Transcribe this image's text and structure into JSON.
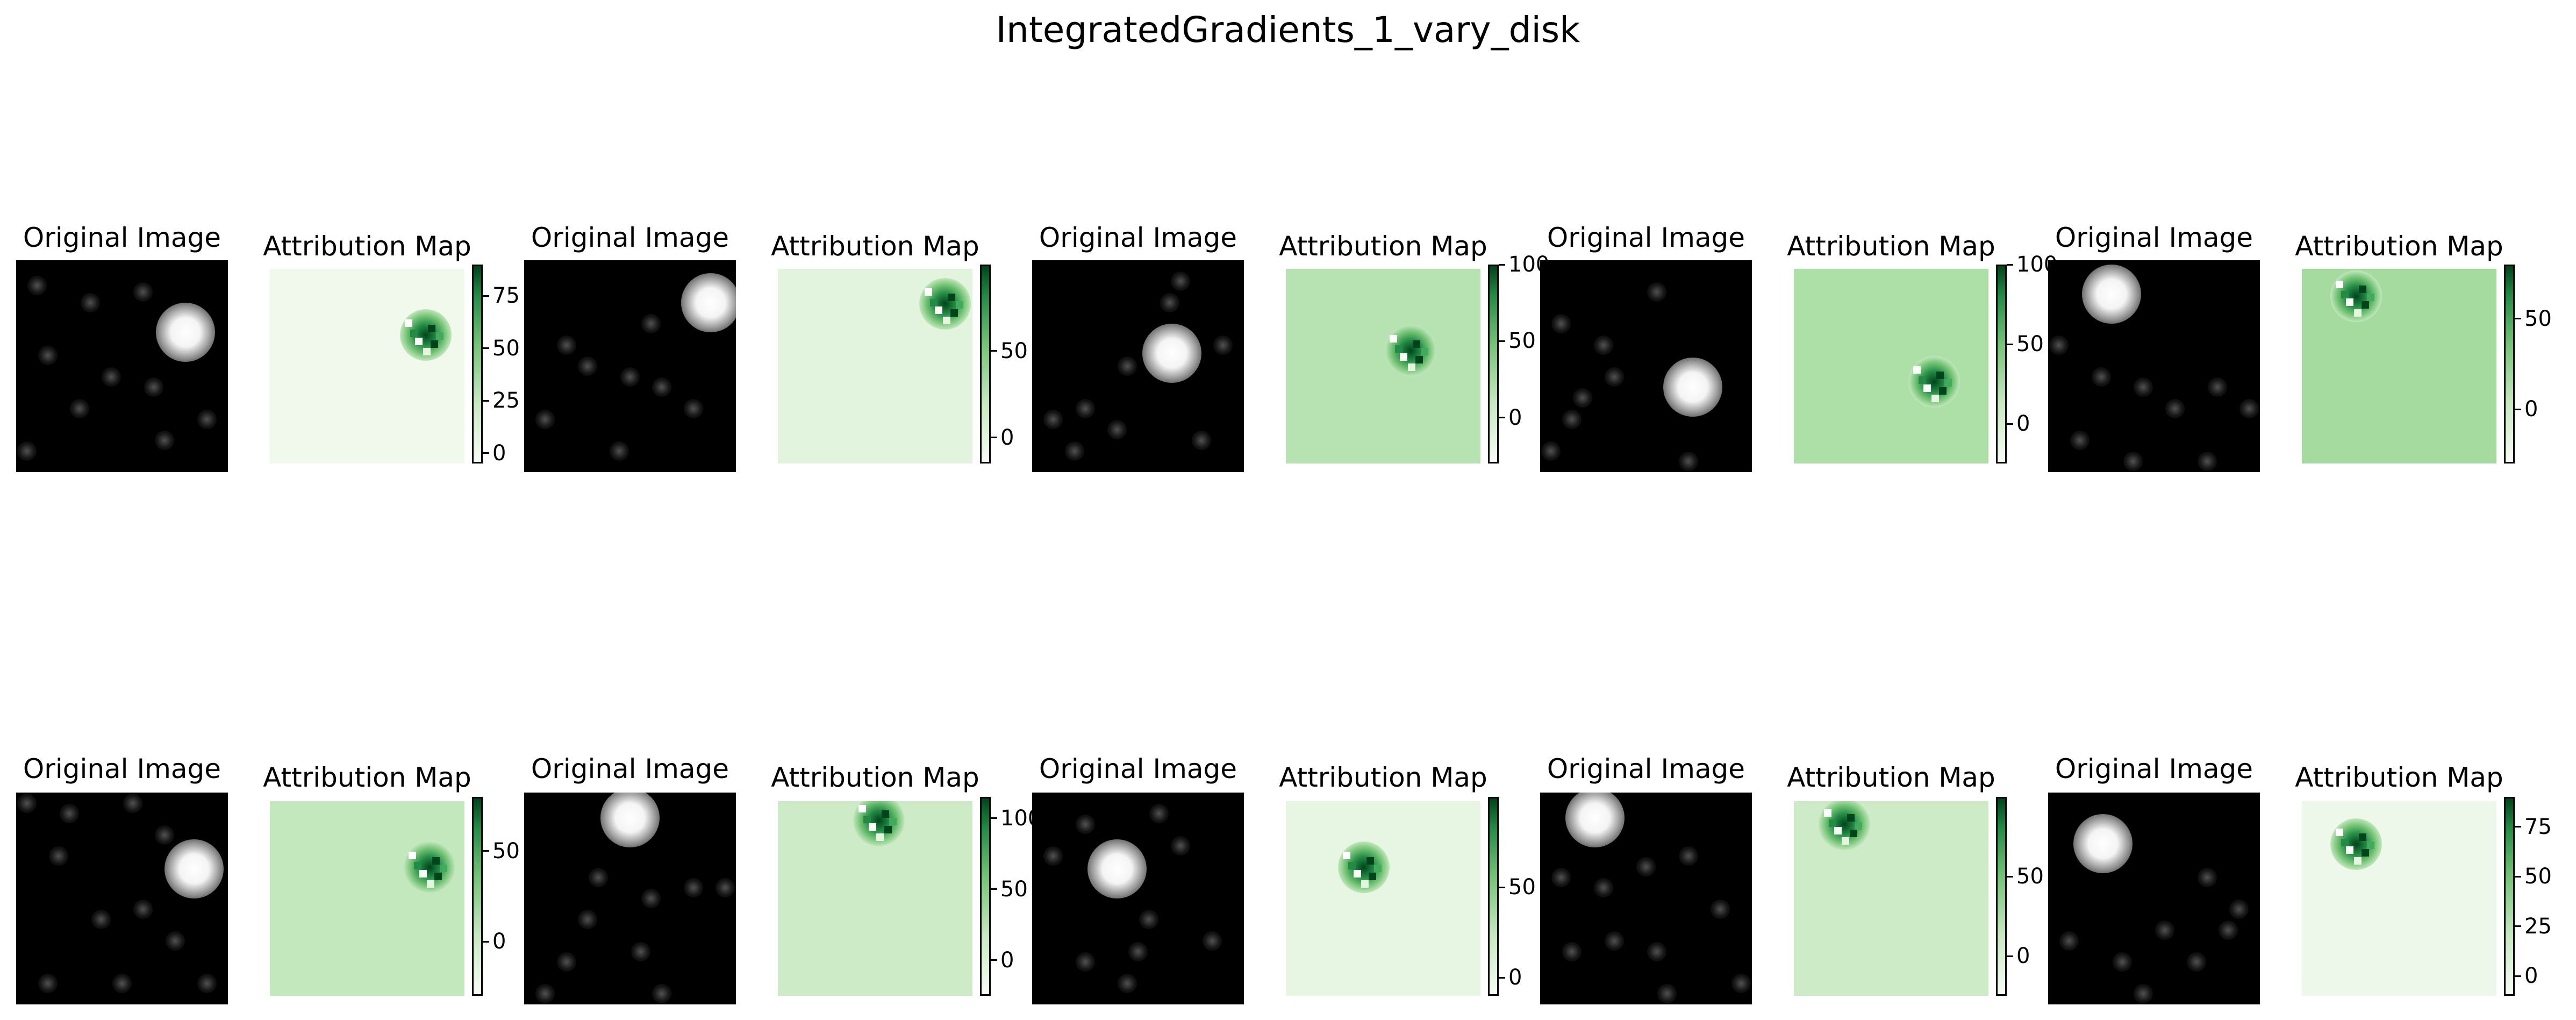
{
  "chart_data": {
    "type": "heatmap",
    "title": "IntegratedGradients_1_vary_disk",
    "colormap": "Greens",
    "panels": [
      {
        "row": 0,
        "image_title": "Original Image",
        "attr_title": "Attribution Map",
        "disk": [
          0.8,
          0.34
        ],
        "noise": [
          [
            0.1,
            0.12
          ],
          [
            0.35,
            0.2
          ],
          [
            0.6,
            0.15
          ],
          [
            0.15,
            0.45
          ],
          [
            0.45,
            0.55
          ],
          [
            0.65,
            0.6
          ],
          [
            0.3,
            0.7
          ],
          [
            0.05,
            0.9
          ],
          [
            0.7,
            0.85
          ],
          [
            0.9,
            0.75
          ]
        ],
        "attr_center": [
          0.8,
          0.34
        ],
        "attr_bg": "#f0f9ec",
        "colorbar": {
          "min": -5,
          "max": 90,
          "ticks": [
            0,
            25,
            50,
            75
          ]
        }
      },
      {
        "row": 0,
        "image_title": "Original Image",
        "attr_title": "Attribution Map",
        "disk": [
          0.88,
          0.2
        ],
        "noise": [
          [
            0.2,
            0.4
          ],
          [
            0.3,
            0.5
          ],
          [
            0.5,
            0.55
          ],
          [
            0.65,
            0.6
          ],
          [
            0.1,
            0.75
          ],
          [
            0.45,
            0.9
          ],
          [
            0.8,
            0.7
          ],
          [
            0.6,
            0.3
          ]
        ],
        "attr_center": [
          0.86,
          0.18
        ],
        "attr_bg": "#e2f4dd",
        "colorbar": {
          "min": -15,
          "max": 100,
          "ticks": [
            0,
            50
          ]
        }
      },
      {
        "row": 0,
        "image_title": "Original Image",
        "attr_title": "Attribution Map",
        "disk": [
          0.66,
          0.44
        ],
        "noise": [
          [
            0.7,
            0.1
          ],
          [
            0.65,
            0.2
          ],
          [
            0.45,
            0.5
          ],
          [
            0.25,
            0.7
          ],
          [
            0.1,
            0.75
          ],
          [
            0.4,
            0.8
          ],
          [
            0.8,
            0.85
          ],
          [
            0.2,
            0.9
          ],
          [
            0.9,
            0.4
          ]
        ],
        "attr_center": [
          0.64,
          0.42
        ],
        "attr_bg": "#b7e2b1",
        "colorbar": {
          "min": -30,
          "max": 100,
          "ticks": [
            0,
            50,
            100
          ]
        }
      },
      {
        "row": 0,
        "image_title": "Original Image",
        "attr_title": "Attribution Map",
        "disk": [
          0.72,
          0.6
        ],
        "noise": [
          [
            0.1,
            0.3
          ],
          [
            0.3,
            0.4
          ],
          [
            0.2,
            0.65
          ],
          [
            0.35,
            0.55
          ],
          [
            0.15,
            0.75
          ],
          [
            0.55,
            0.15
          ],
          [
            0.7,
            0.95
          ],
          [
            0.05,
            0.9
          ]
        ],
        "attr_center": [
          0.72,
          0.58
        ],
        "attr_bg": "#ade0a6",
        "colorbar": {
          "min": -25,
          "max": 100,
          "ticks": [
            0,
            50,
            100
          ]
        }
      },
      {
        "row": 0,
        "image_title": "Original Image",
        "attr_title": "Attribution Map",
        "disk": [
          0.3,
          0.16
        ],
        "noise": [
          [
            0.05,
            0.4
          ],
          [
            0.25,
            0.55
          ],
          [
            0.45,
            0.6
          ],
          [
            0.6,
            0.7
          ],
          [
            0.8,
            0.6
          ],
          [
            0.95,
            0.7
          ],
          [
            0.15,
            0.85
          ],
          [
            0.4,
            0.95
          ],
          [
            0.75,
            0.95
          ]
        ],
        "attr_center": [
          0.28,
          0.14
        ],
        "attr_bg": "#a6dba0",
        "colorbar": {
          "min": -30,
          "max": 80,
          "ticks": [
            0,
            50
          ]
        }
      },
      {
        "row": 1,
        "image_title": "Original Image",
        "attr_title": "Attribution Map",
        "disk": [
          0.84,
          0.36
        ],
        "noise": [
          [
            0.05,
            0.05
          ],
          [
            0.25,
            0.1
          ],
          [
            0.55,
            0.05
          ],
          [
            0.7,
            0.2
          ],
          [
            0.2,
            0.3
          ],
          [
            0.4,
            0.6
          ],
          [
            0.6,
            0.55
          ],
          [
            0.75,
            0.7
          ],
          [
            0.15,
            0.9
          ],
          [
            0.9,
            0.9
          ],
          [
            0.5,
            0.9
          ]
        ],
        "attr_center": [
          0.82,
          0.34
        ],
        "attr_bg": "#c4e8bd",
        "colorbar": {
          "min": -30,
          "max": 80,
          "ticks": [
            0,
            50
          ]
        }
      },
      {
        "row": 1,
        "image_title": "Original Image",
        "attr_title": "Attribution Map",
        "disk": [
          0.5,
          0.12
        ],
        "noise": [
          [
            0.35,
            0.4
          ],
          [
            0.6,
            0.5
          ],
          [
            0.3,
            0.6
          ],
          [
            0.8,
            0.45
          ],
          [
            0.95,
            0.45
          ],
          [
            0.55,
            0.75
          ],
          [
            0.2,
            0.8
          ],
          [
            0.1,
            0.95
          ],
          [
            0.65,
            0.95
          ]
        ],
        "attr_center": [
          0.52,
          0.1
        ],
        "attr_bg": "#cdebc6",
        "colorbar": {
          "min": -25,
          "max": 115,
          "ticks": [
            0,
            50,
            100
          ]
        }
      },
      {
        "row": 1,
        "image_title": "Original Image",
        "attr_title": "Attribution Map",
        "disk": [
          0.4,
          0.36
        ],
        "noise": [
          [
            0.1,
            0.3
          ],
          [
            0.25,
            0.15
          ],
          [
            0.6,
            0.1
          ],
          [
            0.7,
            0.25
          ],
          [
            0.55,
            0.6
          ],
          [
            0.5,
            0.75
          ],
          [
            0.45,
            0.9
          ],
          [
            0.25,
            0.8
          ],
          [
            0.85,
            0.7
          ]
        ],
        "attr_center": [
          0.4,
          0.34
        ],
        "attr_bg": "#e7f6e2",
        "colorbar": {
          "min": -10,
          "max": 100,
          "ticks": [
            0,
            50
          ]
        }
      },
      {
        "row": 1,
        "image_title": "Original Image",
        "attr_title": "Attribution Map",
        "disk": [
          0.26,
          0.12
        ],
        "noise": [
          [
            0.1,
            0.4
          ],
          [
            0.3,
            0.45
          ],
          [
            0.5,
            0.35
          ],
          [
            0.7,
            0.3
          ],
          [
            0.85,
            0.55
          ],
          [
            0.55,
            0.75
          ],
          [
            0.35,
            0.7
          ],
          [
            0.15,
            0.75
          ],
          [
            0.6,
            0.95
          ],
          [
            0.95,
            0.9
          ]
        ],
        "attr_center": [
          0.26,
          0.12
        ],
        "attr_bg": "#cdebc6",
        "colorbar": {
          "min": -25,
          "max": 100,
          "ticks": [
            0,
            50
          ]
        }
      },
      {
        "row": 1,
        "image_title": "Original Image",
        "attr_title": "Attribution Map",
        "disk": [
          0.26,
          0.24
        ],
        "noise": [
          [
            0.1,
            0.7
          ],
          [
            0.35,
            0.8
          ],
          [
            0.55,
            0.65
          ],
          [
            0.7,
            0.8
          ],
          [
            0.85,
            0.65
          ],
          [
            0.45,
            0.95
          ],
          [
            0.75,
            0.4
          ],
          [
            0.9,
            0.55
          ]
        ],
        "attr_center": [
          0.28,
          0.22
        ],
        "attr_bg": "#eef8ea",
        "colorbar": {
          "min": -10,
          "max": 90,
          "ticks": [
            0,
            25,
            50,
            75
          ]
        }
      }
    ]
  }
}
